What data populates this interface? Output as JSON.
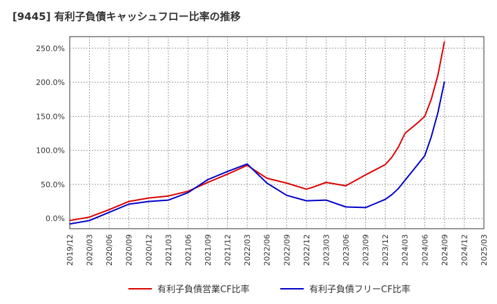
{
  "title": "[9445]  有利子負債キャッシュフロー比率の推移",
  "chart_data": {
    "type": "line",
    "title": "[9445]  有利子負債キャッシュフロー比率の推移",
    "xlabel": "",
    "ylabel": "",
    "x_ticks": [
      "2019/12",
      "2020/03",
      "2020/06",
      "2020/09",
      "2020/12",
      "2021/03",
      "2021/06",
      "2021/09",
      "2021/12",
      "2022/03",
      "2022/06",
      "2022/09",
      "2022/12",
      "2023/03",
      "2023/06",
      "2023/09",
      "2023/12",
      "2024/03",
      "2024/06",
      "2024/09",
      "2024/12",
      "2025/03"
    ],
    "y_ticks": [
      "0.0%",
      "50.0%",
      "100.0%",
      "150.0%",
      "200.0%",
      "250.0%"
    ],
    "y_tick_values": [
      0,
      50,
      100,
      150,
      200,
      250
    ],
    "ylim": [
      -15,
      267
    ],
    "grid": true,
    "legend_position": "bottom",
    "series": [
      {
        "name": "有利子負債営業CF比率",
        "color": "#dd0000",
        "x": [
          "2019/12",
          "2020/03",
          "2020/06",
          "2020/09",
          "2020/12",
          "2021/03",
          "2021/06",
          "2021/09",
          "2021/12",
          "2022/03",
          "2022/06",
          "2022/09",
          "2022/12",
          "2023/01",
          "2023/03",
          "2023/06",
          "2023/09",
          "2023/10",
          "2023/12",
          "2024/01",
          "2024/02",
          "2024/03",
          "2024/04",
          "2024/05",
          "2024/06",
          "2024/07",
          "2024/08",
          "2024/09"
        ],
        "values": [
          -3,
          2,
          13,
          25,
          30,
          33,
          40,
          53,
          65,
          78,
          59,
          52,
          43,
          46,
          53,
          48,
          64,
          69,
          79,
          90,
          105,
          125,
          133,
          141,
          150,
          175,
          210,
          260
        ]
      },
      {
        "name": "有利子負債フリーCF比率",
        "color": "#0000cc",
        "x": [
          "2019/12",
          "2020/03",
          "2020/06",
          "2020/09",
          "2020/12",
          "2021/03",
          "2021/06",
          "2021/09",
          "2021/12",
          "2022/03",
          "2022/06",
          "2022/09",
          "2022/12",
          "2023/03",
          "2023/06",
          "2023/09",
          "2023/10",
          "2023/12",
          "2024/01",
          "2024/02",
          "2024/03",
          "2024/04",
          "2024/05",
          "2024/06",
          "2024/07",
          "2024/08",
          "2024/09"
        ],
        "values": [
          -8,
          -3,
          9,
          21,
          25,
          27,
          38,
          57,
          69,
          80,
          52,
          34,
          26,
          27,
          17,
          16,
          20,
          28,
          35,
          44,
          56,
          68,
          80,
          92,
          120,
          155,
          201
        ]
      }
    ]
  }
}
